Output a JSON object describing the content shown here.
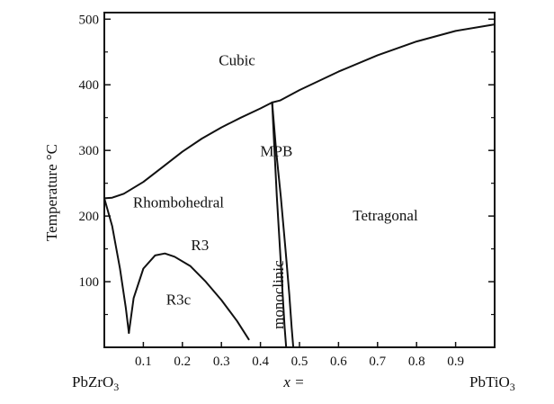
{
  "chart_data": {
    "type": "line",
    "title": "",
    "xlabel": "x =",
    "ylabel": "Temperature °C",
    "xlim": [
      0,
      1
    ],
    "ylim": [
      0,
      510
    ],
    "x_ticks": [
      0.1,
      0.2,
      0.3,
      0.4,
      0.5,
      0.6,
      0.7,
      0.8,
      0.9
    ],
    "y_ticks": [
      100,
      200,
      300,
      400,
      500
    ],
    "x_end_labels": {
      "left": "PbZrO",
      "left_sub": "3",
      "right": "PbTiO",
      "right_sub": "3"
    },
    "boundaries": [
      {
        "name": "cubic-boundary",
        "x": [
          0,
          0.02,
          0.05,
          0.1,
          0.15,
          0.2,
          0.25,
          0.3,
          0.35,
          0.4,
          0.43,
          0.45,
          0.5,
          0.6,
          0.7,
          0.8,
          0.9,
          1.0
        ],
        "y": [
          227,
          228,
          234,
          252,
          275,
          298,
          318,
          335,
          350,
          364,
          373,
          376,
          392,
          420,
          445,
          466,
          482,
          492
        ]
      },
      {
        "name": "antiferroelectric-boundary",
        "x": [
          0,
          0.02,
          0.04,
          0.055,
          0.063
        ],
        "y": [
          227,
          185,
          120,
          60,
          22
        ]
      },
      {
        "name": "r3-r3c-boundary",
        "x": [
          0.063,
          0.075,
          0.1,
          0.13,
          0.155,
          0.18,
          0.22,
          0.26,
          0.3,
          0.34,
          0.37
        ],
        "y": [
          22,
          75,
          120,
          140,
          143,
          138,
          124,
          100,
          72,
          40,
          12
        ]
      },
      {
        "name": "mpb-left",
        "x": [
          0.43,
          0.436,
          0.442,
          0.45,
          0.457,
          0.462,
          0.466
        ],
        "y": [
          373,
          300,
          230,
          150,
          80,
          30,
          0
        ]
      },
      {
        "name": "mpb-right",
        "x": [
          0.43,
          0.44,
          0.452,
          0.464,
          0.474,
          0.48,
          0.484
        ],
        "y": [
          373,
          300,
          230,
          150,
          80,
          30,
          0
        ]
      }
    ],
    "regions": [
      {
        "name": "cubic-label",
        "text": "Cubic",
        "x": 0.34,
        "y": 430
      },
      {
        "name": "rhombohedral-label",
        "text": "Rhombohedral",
        "x": 0.19,
        "y": 213
      },
      {
        "name": "r3-label",
        "text": "R3",
        "x": 0.245,
        "y": 148
      },
      {
        "name": "r3c-label",
        "text": "R3c",
        "x": 0.19,
        "y": 65
      },
      {
        "name": "mpb-label",
        "text": "MPB",
        "x": 0.441,
        "y": 291
      },
      {
        "name": "tetragonal-label",
        "text": "Tetragonal",
        "x": 0.72,
        "y": 193
      },
      {
        "name": "monoclinic-label",
        "text": "monoclinic",
        "x": 0.458,
        "y": 80,
        "rotate": -90
      }
    ]
  }
}
